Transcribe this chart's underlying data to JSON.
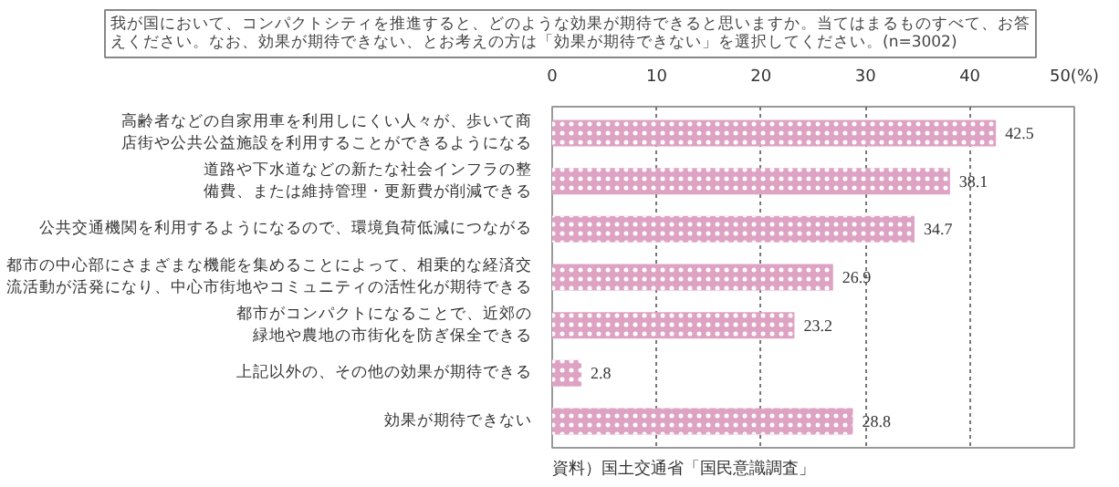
{
  "chart_data": {
    "type": "bar",
    "orientation": "horizontal",
    "title": "我が国において、コンパクトシティを推進すると、どのような効果が期待できると思いますか。当てはまるものすべて、お答えください。なお、効果が期待できない、とお考えの方は「効果が期待できない」を選択してください。(n=3002)",
    "categories": [
      "高齢者などの自家用車を利用しにくい人々が、歩いて商店街や公共公益施設を利用することができるようになる",
      "道路や下水道などの新たな社会インフラの整備費、または維持管理・更新費が削減できる",
      "公共交通機関を利用するようになるので、環境負荷低減につながる",
      "都市の中心部にさまざまな機能を集めることによって、相乗的な経済交流活動が活発になり、中心市街地やコミュニティの活性化が期待できる",
      "都市がコンパクトになることで、近郊の緑地や農地の市街化を防ぎ保全できる",
      "上記以外の、その他の効果が期待できる",
      "効果が期待できない"
    ],
    "values": [
      42.5,
      38.1,
      34.7,
      26.9,
      23.2,
      2.8,
      28.8
    ],
    "color": "#dea3c3",
    "data_labels": true,
    "xlim": [
      0,
      50
    ],
    "xticks": [
      0,
      10,
      20,
      30,
      40,
      {
        "value": 50,
        "label": "50(%)"
      }
    ],
    "grid": "x",
    "annotations": [
      "資料）国土交通省「国民意識調査」"
    ]
  }
}
